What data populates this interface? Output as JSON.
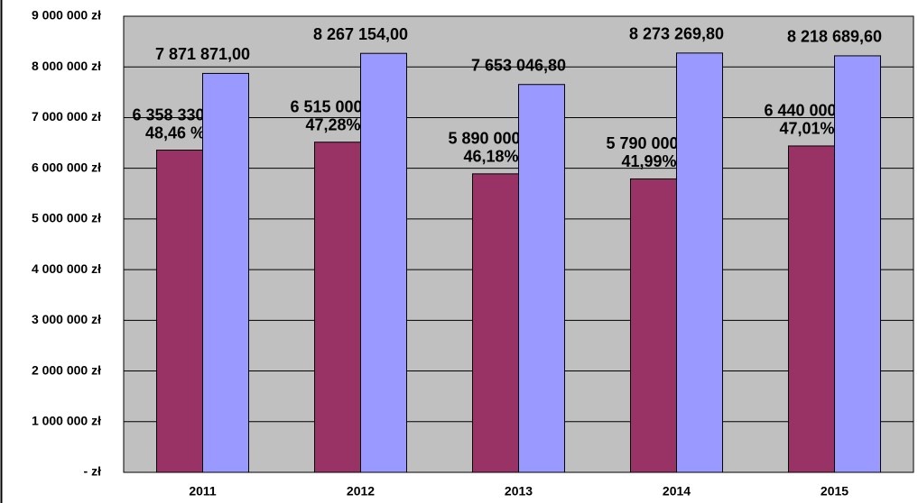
{
  "chart_data": {
    "type": "bar",
    "categories": [
      "2011",
      "2012",
      "2013",
      "2014",
      "2015"
    ],
    "series": [
      {
        "color": "#993366",
        "values": [
          6358330.79,
          6515000.0,
          5890000.0,
          5790000.0,
          6440000.0
        ],
        "value_labels": [
          "6 358 330,79",
          "6 515 000,00",
          "5 890 000,00",
          "5 790 000,00",
          "6 440 000,00"
        ],
        "percent_labels": [
          "48,46 %",
          "47,28%",
          "46,18%",
          "41,99%",
          "47,01%"
        ]
      },
      {
        "color": "#9999ff",
        "values": [
          7871871.0,
          8267154.0,
          7653046.8,
          8273269.8,
          8218689.6
        ],
        "value_labels": [
          "7 871 871,00",
          "8 267 154,00",
          "7 653 046,80",
          "8 273 269,80",
          "8 218 689,60"
        ]
      }
    ],
    "ylim": [
      0,
      9000000
    ],
    "yticks": [
      {
        "value": 0,
        "label": "-   zł"
      },
      {
        "value": 1000000,
        "label": "1 000 000 zł"
      },
      {
        "value": 2000000,
        "label": "2 000 000 zł"
      },
      {
        "value": 3000000,
        "label": "3 000 000 zł"
      },
      {
        "value": 4000000,
        "label": "4 000 000 zł"
      },
      {
        "value": 5000000,
        "label": "5 000 000 zł"
      },
      {
        "value": 6000000,
        "label": "6 000 000 zł"
      },
      {
        "value": 7000000,
        "label": "7 000 000 zł"
      },
      {
        "value": 8000000,
        "label": "8 000 000 zł"
      },
      {
        "value": 9000000,
        "label": "9 000 000 zł"
      }
    ],
    "grid": true,
    "plot_background": "#c0c0c0"
  }
}
